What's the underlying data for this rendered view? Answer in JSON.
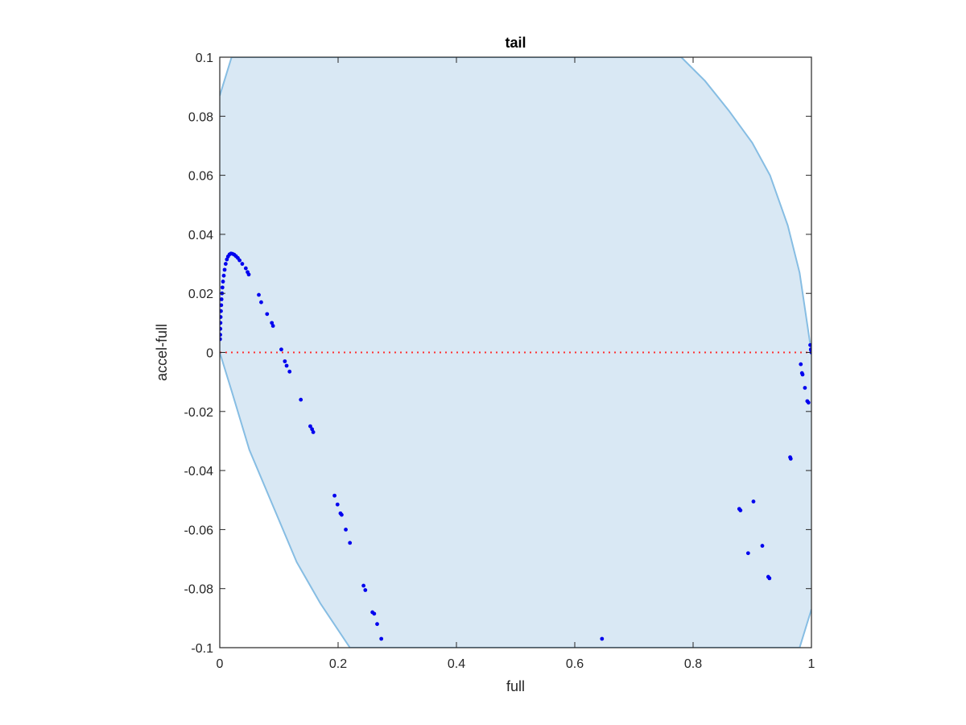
{
  "chart_data": {
    "type": "scatter",
    "title": "tail",
    "xlabel": "full",
    "ylabel": "accel-full",
    "xlim": [
      0,
      1
    ],
    "ylim": [
      -0.1,
      0.1
    ],
    "grid": false,
    "x_ticks": [
      {
        "value": 0,
        "label": "0"
      },
      {
        "value": 0.2,
        "label": "0.2"
      },
      {
        "value": 0.4,
        "label": "0.4"
      },
      {
        "value": 0.6,
        "label": "0.6"
      },
      {
        "value": 0.8,
        "label": "0.8"
      },
      {
        "value": 1,
        "label": "1"
      }
    ],
    "y_ticks": [
      {
        "value": 0.1,
        "label": "0.1"
      },
      {
        "value": 0.08,
        "label": "0.08"
      },
      {
        "value": 0.06,
        "label": "0.06"
      },
      {
        "value": 0.04,
        "label": "0.04"
      },
      {
        "value": 0.02,
        "label": "0.02"
      },
      {
        "value": 0,
        "label": "0"
      },
      {
        "value": -0.02,
        "label": "-0.02"
      },
      {
        "value": -0.04,
        "label": "-0.04"
      },
      {
        "value": -0.06,
        "label": "-0.06"
      },
      {
        "value": -0.08,
        "label": "-0.08"
      },
      {
        "value": -0.1,
        "label": "-0.1"
      }
    ],
    "region": {
      "color_fill": "#d9e8f4",
      "color_edge": "#86bde3",
      "upper_boundary": [
        [
          0,
          0.087
        ],
        [
          0.02,
          0.1
        ],
        [
          0.78,
          0.1
        ],
        [
          0.82,
          0.092
        ],
        [
          0.86,
          0.082
        ],
        [
          0.9,
          0.071
        ],
        [
          0.93,
          0.06
        ],
        [
          0.96,
          0.043
        ],
        [
          0.98,
          0.027
        ],
        [
          1.0,
          0.0
        ]
      ],
      "lower_boundary": [
        [
          0,
          0.0
        ],
        [
          0.02,
          -0.013
        ],
        [
          0.05,
          -0.033
        ],
        [
          0.09,
          -0.052
        ],
        [
          0.13,
          -0.071
        ],
        [
          0.17,
          -0.085
        ],
        [
          0.22,
          -0.1
        ],
        [
          0.98,
          -0.1
        ],
        [
          1.0,
          -0.087
        ]
      ]
    },
    "series": [
      {
        "color": "#0000ee",
        "points": [
          [
            0.0005,
            0.0045
          ],
          [
            0.0008,
            0.006
          ],
          [
            0.001,
            0.008
          ],
          [
            0.0012,
            0.01
          ],
          [
            0.0015,
            0.012
          ],
          [
            0.002,
            0.014
          ],
          [
            0.0025,
            0.016
          ],
          [
            0.003,
            0.018
          ],
          [
            0.0038,
            0.02
          ],
          [
            0.0045,
            0.022
          ],
          [
            0.0055,
            0.024
          ],
          [
            0.0068,
            0.026
          ],
          [
            0.0082,
            0.028
          ],
          [
            0.01,
            0.03
          ],
          [
            0.012,
            0.0315
          ],
          [
            0.014,
            0.0325
          ],
          [
            0.0165,
            0.0332
          ],
          [
            0.019,
            0.0335
          ],
          [
            0.0215,
            0.0334
          ],
          [
            0.0245,
            0.0331
          ],
          [
            0.0275,
            0.0326
          ],
          [
            0.0305,
            0.032
          ],
          [
            0.0335,
            0.0312
          ],
          [
            0.038,
            0.03
          ],
          [
            0.044,
            0.0285
          ],
          [
            0.047,
            0.0272
          ],
          [
            0.049,
            0.0264
          ],
          [
            0.066,
            0.0195
          ],
          [
            0.07,
            0.017
          ],
          [
            0.08,
            0.013
          ],
          [
            0.088,
            0.01
          ],
          [
            0.09,
            0.009
          ],
          [
            0.104,
            0.001
          ],
          [
            0.11,
            -0.003
          ],
          [
            0.113,
            -0.0045
          ],
          [
            0.118,
            -0.0065
          ],
          [
            0.137,
            -0.016
          ],
          [
            0.153,
            -0.025
          ],
          [
            0.156,
            -0.026
          ],
          [
            0.158,
            -0.027
          ],
          [
            0.194,
            -0.0485
          ],
          [
            0.199,
            -0.0515
          ],
          [
            0.204,
            -0.0545
          ],
          [
            0.206,
            -0.055
          ],
          [
            0.213,
            -0.06
          ],
          [
            0.22,
            -0.0645
          ],
          [
            0.243,
            -0.079
          ],
          [
            0.246,
            -0.0805
          ],
          [
            0.258,
            -0.088
          ],
          [
            0.261,
            -0.0885
          ],
          [
            0.266,
            -0.092
          ],
          [
            0.273,
            -0.097
          ],
          [
            0.646,
            -0.097
          ],
          [
            0.878,
            -0.053
          ],
          [
            0.88,
            -0.0535
          ],
          [
            0.893,
            -0.068
          ],
          [
            0.902,
            -0.0505
          ],
          [
            0.917,
            -0.0655
          ],
          [
            0.927,
            -0.076
          ],
          [
            0.929,
            -0.0765
          ],
          [
            0.964,
            -0.0355
          ],
          [
            0.965,
            -0.036
          ],
          [
            0.982,
            -0.004
          ],
          [
            0.984,
            -0.007
          ],
          [
            0.985,
            -0.0075
          ],
          [
            0.989,
            -0.012
          ],
          [
            0.993,
            -0.0165
          ],
          [
            0.995,
            -0.017
          ],
          [
            0.998,
            0.0025
          ],
          [
            1.0,
            0.0
          ],
          [
            1.0,
            0.0005
          ],
          [
            0.999,
            0.001
          ]
        ]
      }
    ],
    "reference_line": {
      "y": 0,
      "color": "#ff3030",
      "style": "dotted"
    }
  }
}
